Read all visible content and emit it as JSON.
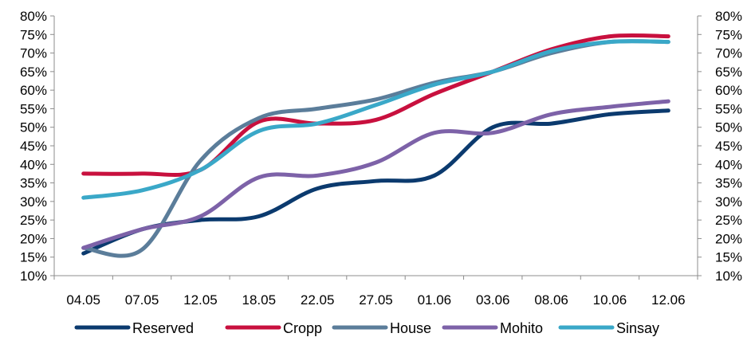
{
  "chart_data": {
    "type": "line",
    "categories": [
      "04.05",
      "07.05",
      "12.05",
      "18.05",
      "22.05",
      "27.05",
      "01.06",
      "03.06",
      "08.06",
      "10.06",
      "12.06"
    ],
    "ylim": [
      10,
      80
    ],
    "y_tick_values": [
      10,
      15,
      20,
      25,
      30,
      35,
      40,
      45,
      50,
      55,
      60,
      65,
      70,
      75,
      80
    ],
    "y_tick_labels": [
      "10%",
      "15%",
      "20%",
      "25%",
      "30%",
      "35%",
      "40%",
      "45%",
      "50%",
      "55%",
      "60%",
      "65%",
      "70%",
      "75%",
      "80%"
    ],
    "secondary_y_axis": true,
    "grid": false,
    "legend_position": "bottom",
    "series": [
      {
        "name": "Reserved",
        "color": "#0b3a6e",
        "values": [
          16,
          22.5,
          25,
          26,
          33.5,
          35.5,
          37,
          50,
          51,
          53.5,
          54.5
        ]
      },
      {
        "name": "Cropp",
        "color": "#c8103e",
        "values": [
          37.5,
          37.5,
          38.5,
          51.5,
          51,
          52,
          59,
          65,
          71,
          74.5,
          74.5
        ]
      },
      {
        "name": "House",
        "color": "#5b7d9a",
        "values": [
          17.5,
          17,
          41,
          52.5,
          55,
          57.5,
          62,
          65,
          70,
          73,
          73
        ]
      },
      {
        "name": "Mohito",
        "color": "#7d62a8",
        "values": [
          17.5,
          22.5,
          26,
          36.5,
          37,
          40.5,
          48.5,
          48.5,
          53.5,
          55.5,
          57
        ]
      },
      {
        "name": "Sinsay",
        "color": "#3aa8c8",
        "values": [
          31,
          33,
          38.5,
          49,
          51,
          56,
          61.5,
          65,
          70.5,
          73,
          73
        ]
      }
    ]
  }
}
